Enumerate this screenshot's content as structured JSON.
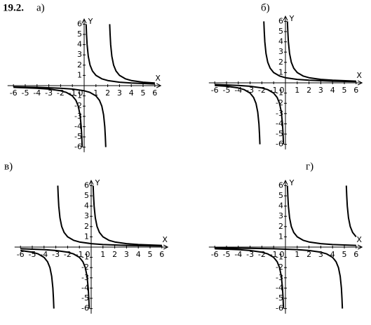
{
  "title": "19.2.",
  "chart_data": [
    {
      "type": "line",
      "label": "а)",
      "xlabel": "X",
      "ylabel": "Y",
      "xlim": [
        -6.5,
        6.5
      ],
      "ylim": [
        -6.5,
        6.5
      ],
      "xticks": [
        -6,
        -5,
        -4,
        -3,
        -2,
        -1,
        0,
        1,
        2,
        3,
        4,
        5,
        6
      ],
      "yticks": [
        -6,
        -5,
        -4,
        -3,
        -2,
        -1,
        1,
        2,
        3,
        4,
        5,
        6
      ],
      "series": [
        {
          "color": "#000000",
          "x": [
            -6,
            -4,
            -3,
            -2,
            -1.5,
            -1,
            -0.7,
            -0.5,
            -0.35,
            -0.25,
            -0.2,
            -0.167,
            0,
            0.167,
            0.2,
            0.25,
            0.35,
            0.5,
            0.7,
            1,
            1.5,
            2,
            3,
            4,
            6
          ],
          "values": [
            -0.167,
            -0.25,
            -0.333,
            -0.5,
            -0.667,
            -1,
            -1.429,
            -2,
            -2.857,
            -4,
            -5,
            -6,
            null,
            6,
            5,
            4,
            2.857,
            2,
            1.429,
            1,
            0.667,
            0.5,
            0.333,
            0.25,
            0.167
          ]
        },
        {
          "color": "#000000",
          "x": [
            -6,
            -4,
            -2,
            -1,
            0,
            0.5,
            1,
            1.3,
            1.5,
            1.65,
            1.75,
            1.8,
            1.833,
            2,
            2.167,
            2.2,
            2.25,
            2.35,
            2.5,
            2.7,
            3,
            3.5,
            4,
            5,
            6
          ],
          "values": [
            -0.125,
            -0.167,
            -0.25,
            -0.333,
            -0.5,
            -0.667,
            -1,
            -1.429,
            -2,
            -2.857,
            -4,
            -5,
            -6,
            null,
            6,
            5,
            4,
            2.857,
            2,
            1.429,
            1,
            0.667,
            0.5,
            0.333,
            0.25
          ]
        }
      ]
    },
    {
      "type": "line",
      "label": "б)",
      "xlabel": "X",
      "ylabel": "Y",
      "xlim": [
        -6.5,
        6.5
      ],
      "ylim": [
        -6.5,
        6.5
      ],
      "xticks": [
        -6,
        -5,
        -4,
        -3,
        -2,
        -1,
        0,
        1,
        2,
        3,
        4,
        5,
        6
      ],
      "yticks": [
        -6,
        -5,
        -4,
        -3,
        -2,
        -1,
        1,
        2,
        3,
        4,
        5,
        6
      ],
      "series": [
        {
          "color": "#000000",
          "x": [
            -6,
            -4,
            -3,
            -2,
            -1.5,
            -1,
            -0.7,
            -0.5,
            -0.35,
            -0.25,
            -0.2,
            -0.167,
            0,
            0.167,
            0.2,
            0.25,
            0.35,
            0.5,
            0.7,
            1,
            1.5,
            2,
            3,
            4,
            6
          ],
          "values": [
            -0.167,
            -0.25,
            -0.333,
            -0.5,
            -0.667,
            -1,
            -1.429,
            -2,
            -2.857,
            -4,
            -5,
            -6,
            null,
            6,
            5,
            4,
            2.857,
            2,
            1.429,
            1,
            0.667,
            0.5,
            0.333,
            0.25,
            0.167
          ]
        },
        {
          "color": "#000000",
          "x": [
            -6,
            -5,
            -4,
            -3.5,
            -3,
            -2.7,
            -2.5,
            -2.35,
            -2.25,
            -2.2,
            -2.167,
            -2,
            -1.833,
            -1.8,
            -1.75,
            -1.65,
            -1.5,
            -1.3,
            -1,
            -0.5,
            0,
            1,
            2,
            4,
            6
          ],
          "values": [
            -0.25,
            -0.333,
            -0.5,
            -0.667,
            -1,
            -1.429,
            -2,
            -2.857,
            -4,
            -5,
            -6,
            null,
            6,
            5,
            4,
            2.857,
            2,
            1.429,
            1,
            0.667,
            0.5,
            0.333,
            0.25,
            0.167,
            0.125
          ]
        }
      ]
    },
    {
      "type": "line",
      "label": "в)",
      "xlabel": "X",
      "ylabel": "Y",
      "xlim": [
        -6.5,
        6.5
      ],
      "ylim": [
        -6.5,
        6.5
      ],
      "xticks": [
        -6,
        -5,
        -4,
        -3,
        -2,
        -1,
        0,
        1,
        2,
        3,
        4,
        5,
        6
      ],
      "yticks": [
        -6,
        -5,
        -4,
        -3,
        -2,
        -1,
        1,
        2,
        3,
        4,
        5,
        6
      ],
      "series": [
        {
          "color": "#000000",
          "x": [
            -6,
            -4,
            -3,
            -2,
            -1.5,
            -1,
            -0.7,
            -0.5,
            -0.35,
            -0.25,
            -0.2,
            -0.167,
            0,
            0.167,
            0.2,
            0.25,
            0.35,
            0.5,
            0.7,
            1,
            1.5,
            2,
            3,
            4,
            6
          ],
          "values": [
            -0.167,
            -0.25,
            -0.333,
            -0.5,
            -0.667,
            -1,
            -1.429,
            -2,
            -2.857,
            -4,
            -5,
            -6,
            null,
            6,
            5,
            4,
            2.857,
            2,
            1.429,
            1,
            0.667,
            0.5,
            0.333,
            0.25,
            0.167
          ]
        },
        {
          "color": "#000000",
          "x": [
            -6,
            -5,
            -4.5,
            -4,
            -3.7,
            -3.5,
            -3.35,
            -3.25,
            -3.2,
            -3.167,
            -3,
            -2.833,
            -2.8,
            -2.75,
            -2.65,
            -2.5,
            -2.3,
            -2,
            -1.5,
            -1,
            0,
            1,
            3,
            6
          ],
          "values": [
            -0.333,
            -0.5,
            -0.667,
            -1,
            -1.429,
            -2,
            -2.857,
            -4,
            -5,
            -6,
            null,
            6,
            5,
            4,
            2.857,
            2,
            1.429,
            1,
            0.667,
            0.5,
            0.333,
            0.25,
            0.167,
            0.111
          ]
        }
      ]
    },
    {
      "type": "line",
      "label": "г)",
      "xlabel": "X",
      "ylabel": "Y",
      "xlim": [
        -6.5,
        6.5
      ],
      "ylim": [
        -6.5,
        6.5
      ],
      "xticks": [
        -6,
        -5,
        -4,
        -3,
        -2,
        -1,
        0,
        1,
        2,
        3,
        4,
        5,
        6
      ],
      "yticks": [
        -6,
        -5,
        -4,
        -3,
        -2,
        -1,
        1,
        2,
        3,
        4,
        5,
        6
      ],
      "series": [
        {
          "color": "#000000",
          "x": [
            -6,
            -4,
            -3,
            -2,
            -1.5,
            -1,
            -0.7,
            -0.5,
            -0.35,
            -0.25,
            -0.2,
            -0.167,
            0,
            0.167,
            0.2,
            0.25,
            0.35,
            0.5,
            0.7,
            1,
            1.5,
            2,
            3,
            4,
            6
          ],
          "values": [
            -0.167,
            -0.25,
            -0.333,
            -0.5,
            -0.667,
            -1,
            -1.429,
            -2,
            -2.857,
            -4,
            -5,
            -6,
            null,
            6,
            5,
            4,
            2.857,
            2,
            1.429,
            1,
            0.667,
            0.5,
            0.333,
            0.25,
            0.167
          ]
        },
        {
          "color": "#000000",
          "x": [
            -6,
            -3,
            -1,
            1,
            2,
            3,
            3.5,
            4,
            4.3,
            4.5,
            4.65,
            4.75,
            4.8,
            4.833,
            5,
            5.167,
            5.2,
            5.25,
            5.35,
            5.5,
            5.7,
            6
          ],
          "values": [
            -0.091,
            -0.125,
            -0.167,
            -0.25,
            -0.333,
            -0.5,
            -0.667,
            -1,
            -1.429,
            -2,
            -2.857,
            -4,
            -5,
            -6,
            null,
            6,
            5,
            4,
            2.857,
            2,
            1.429,
            1
          ]
        }
      ]
    }
  ]
}
